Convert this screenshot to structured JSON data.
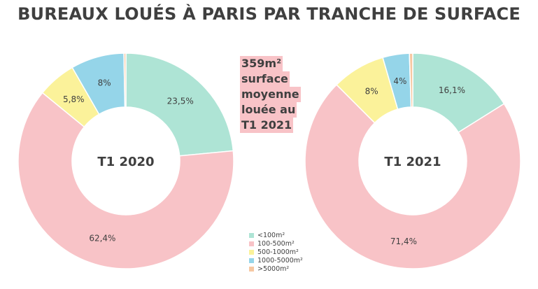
{
  "title": "BUREAUX LOUÉS À PARIS PAR TRANCHE DE SURFACE",
  "highlight_lines": [
    "359m²",
    "surface",
    "moyenne",
    "louée au",
    "T1 2021"
  ],
  "legend": [
    {
      "label": "<100m²",
      "color": "#aee4d5"
    },
    {
      "label": "100-500m²",
      "color": "#f8c3c7"
    },
    {
      "label": "500-1000m²",
      "color": "#fbf29a"
    },
    {
      "label": "1000-5000m²",
      "color": "#95d5e9"
    },
    {
      "label": ">5000m²",
      "color": "#f6c8a2"
    }
  ],
  "chart_data": [
    {
      "type": "pie",
      "title": "T1 2020",
      "categories": [
        "<100m²",
        "100-500m²",
        "500-1000m²",
        "1000-5000m²",
        ">5000m²"
      ],
      "values": [
        23.5,
        62.4,
        5.8,
        8,
        0.3
      ],
      "value_labels": [
        "23,5%",
        "62,4%",
        "5,8%",
        "8%",
        ""
      ],
      "colors": [
        "#aee4d5",
        "#f8c3c7",
        "#fbf29a",
        "#95d5e9",
        "#f6c8a2"
      ]
    },
    {
      "type": "pie",
      "title": "T1 2021",
      "categories": [
        "<100m²",
        "100-500m²",
        "500-1000m²",
        "1000-5000m²",
        ">5000m²"
      ],
      "values": [
        16.1,
        71.4,
        8,
        4,
        0.5
      ],
      "value_labels": [
        "16,1%",
        "71,4%",
        "8%",
        "4%",
        ""
      ],
      "colors": [
        "#aee4d5",
        "#f8c3c7",
        "#fbf29a",
        "#95d5e9",
        "#f6c8a2"
      ]
    }
  ]
}
